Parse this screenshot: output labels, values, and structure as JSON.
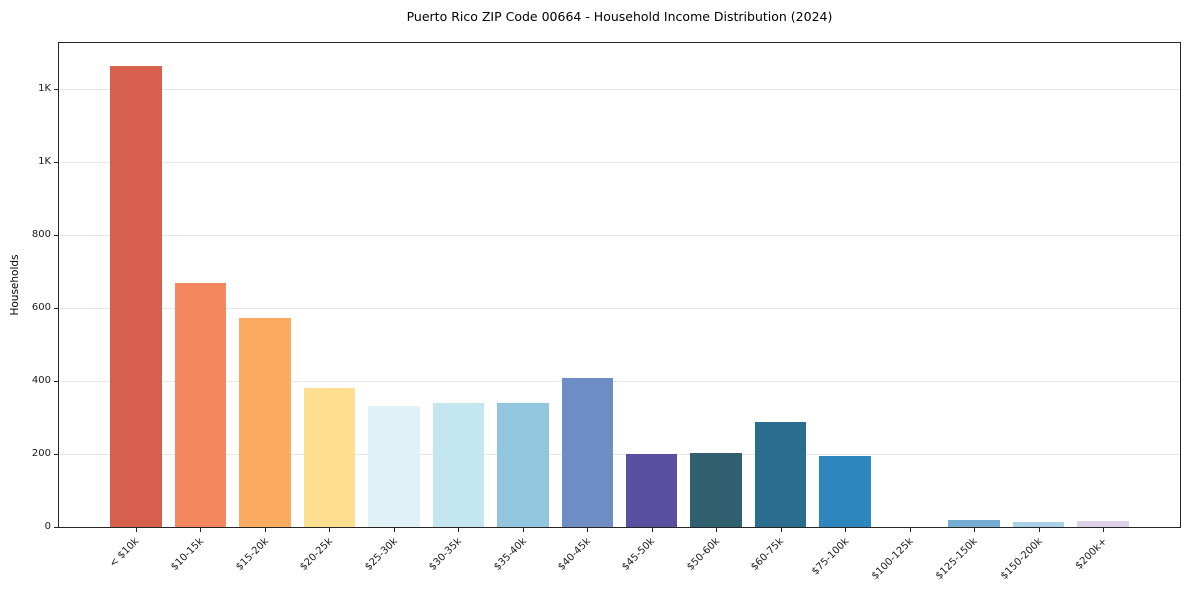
{
  "chart_data": {
    "type": "bar",
    "title": "Puerto Rico ZIP Code 00664 - Household Income Distribution (2024)",
    "xlabel": "",
    "ylabel": "Households",
    "categories": [
      "< $10k",
      "$10-15k",
      "$15-20k",
      "$20-25k",
      "$25-30k",
      "$30-35k",
      "$35-40k",
      "$40-45k",
      "$45-50k",
      "$50-60k",
      "$60-75k",
      "$75-100k",
      "$100-125k",
      "$125-150k",
      "$150-200k",
      "$200k+"
    ],
    "values": [
      1263,
      668,
      573,
      380,
      331,
      339,
      340,
      408,
      201,
      204,
      287,
      196,
      0,
      19,
      14,
      17
    ],
    "bar_colors": [
      "#d6604d",
      "#f4875e",
      "#fbab60",
      "#fddf8f",
      "#e0f2f8",
      "#c3e6f0",
      "#92c5de",
      "#6d8dc4",
      "#5a50a2",
      "#305f70",
      "#2a6d8f",
      "#2e86bf",
      "#5aa5d6",
      "#74add1",
      "#a9d2e6",
      "#ddd2e7"
    ],
    "ylim": [
      0,
      1326
    ],
    "yticks": [
      0,
      200,
      400,
      600,
      800,
      1000,
      1200
    ],
    "ytick_labels": [
      "0",
      "200",
      "400",
      "600",
      "800",
      "1K",
      "1K"
    ],
    "grid": true,
    "legend_position": "none",
    "x_tick_rotation": 45
  }
}
